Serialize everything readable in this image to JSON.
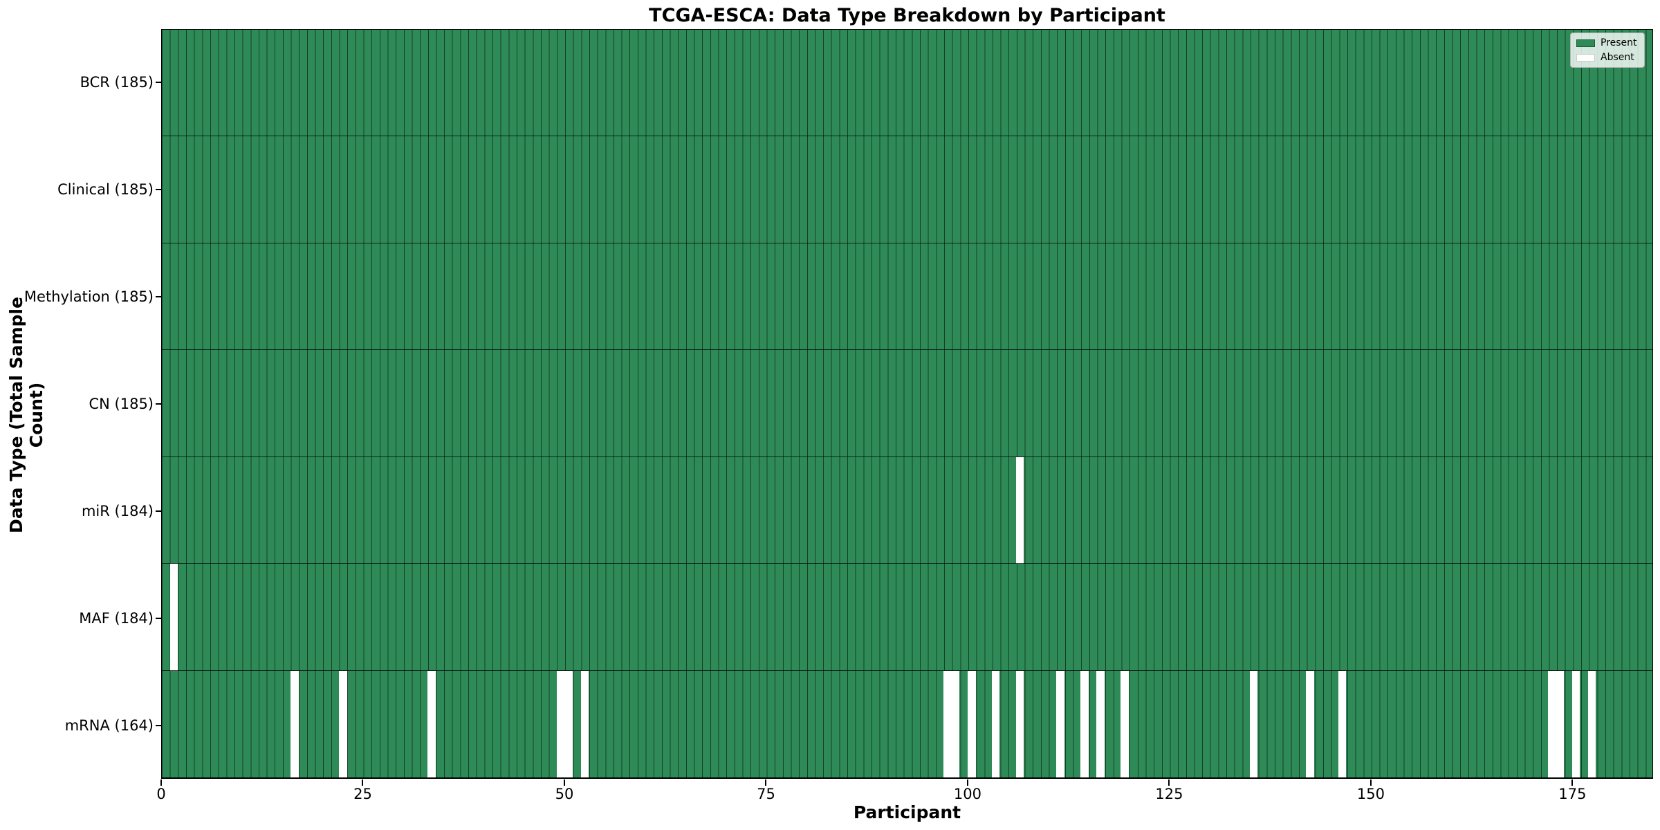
{
  "figure": {
    "title": "TCGA-ESCA: Data Type Breakdown by Participant",
    "xlabel": "Participant",
    "ylabel": "Data Type (Total Sample Count)"
  },
  "chart_data": {
    "type": "heatmap",
    "title": "TCGA-ESCA: Data Type Breakdown by Participant",
    "xlabel": "Participant",
    "ylabel": "Data Type (Total Sample Count)",
    "n_participants": 185,
    "x_range": [
      0,
      185
    ],
    "x_ticks": [
      0,
      25,
      50,
      75,
      100,
      125,
      150,
      175
    ],
    "grid": false,
    "legend_position": "upper right",
    "legend_items": [
      {
        "label": "Present",
        "color": "#2e8b57"
      },
      {
        "label": "Absent",
        "color": "#ffffff"
      }
    ],
    "colors": {
      "present": "#2e8b57",
      "absent": "#ffffff",
      "bar_edge": "rgba(0,0,0,0.55)",
      "legend_bg": "rgba(255,255,255,0.8)"
    },
    "rows": [
      {
        "label": "BCR (185)",
        "data_type": "BCR",
        "total_sample_count": 185,
        "absent_participants": []
      },
      {
        "label": "Clinical (185)",
        "data_type": "Clinical",
        "total_sample_count": 185,
        "absent_participants": []
      },
      {
        "label": "Methylation (185)",
        "data_type": "Methylation",
        "total_sample_count": 185,
        "absent_participants": []
      },
      {
        "label": "CN (185)",
        "data_type": "CN",
        "total_sample_count": 185,
        "absent_participants": []
      },
      {
        "label": "miR (184)",
        "data_type": "miR",
        "total_sample_count": 184,
        "absent_participants": [
          106
        ]
      },
      {
        "label": "MAF (184)",
        "data_type": "MAF",
        "total_sample_count": 184,
        "absent_participants": [
          1
        ]
      },
      {
        "label": "mRNA (164)",
        "data_type": "mRNA",
        "total_sample_count": 164,
        "absent_participants": [
          16,
          22,
          33,
          49,
          50,
          52,
          97,
          98,
          100,
          103,
          106,
          111,
          114,
          116,
          119,
          135,
          142,
          146,
          172,
          173,
          175,
          177
        ]
      }
    ]
  }
}
